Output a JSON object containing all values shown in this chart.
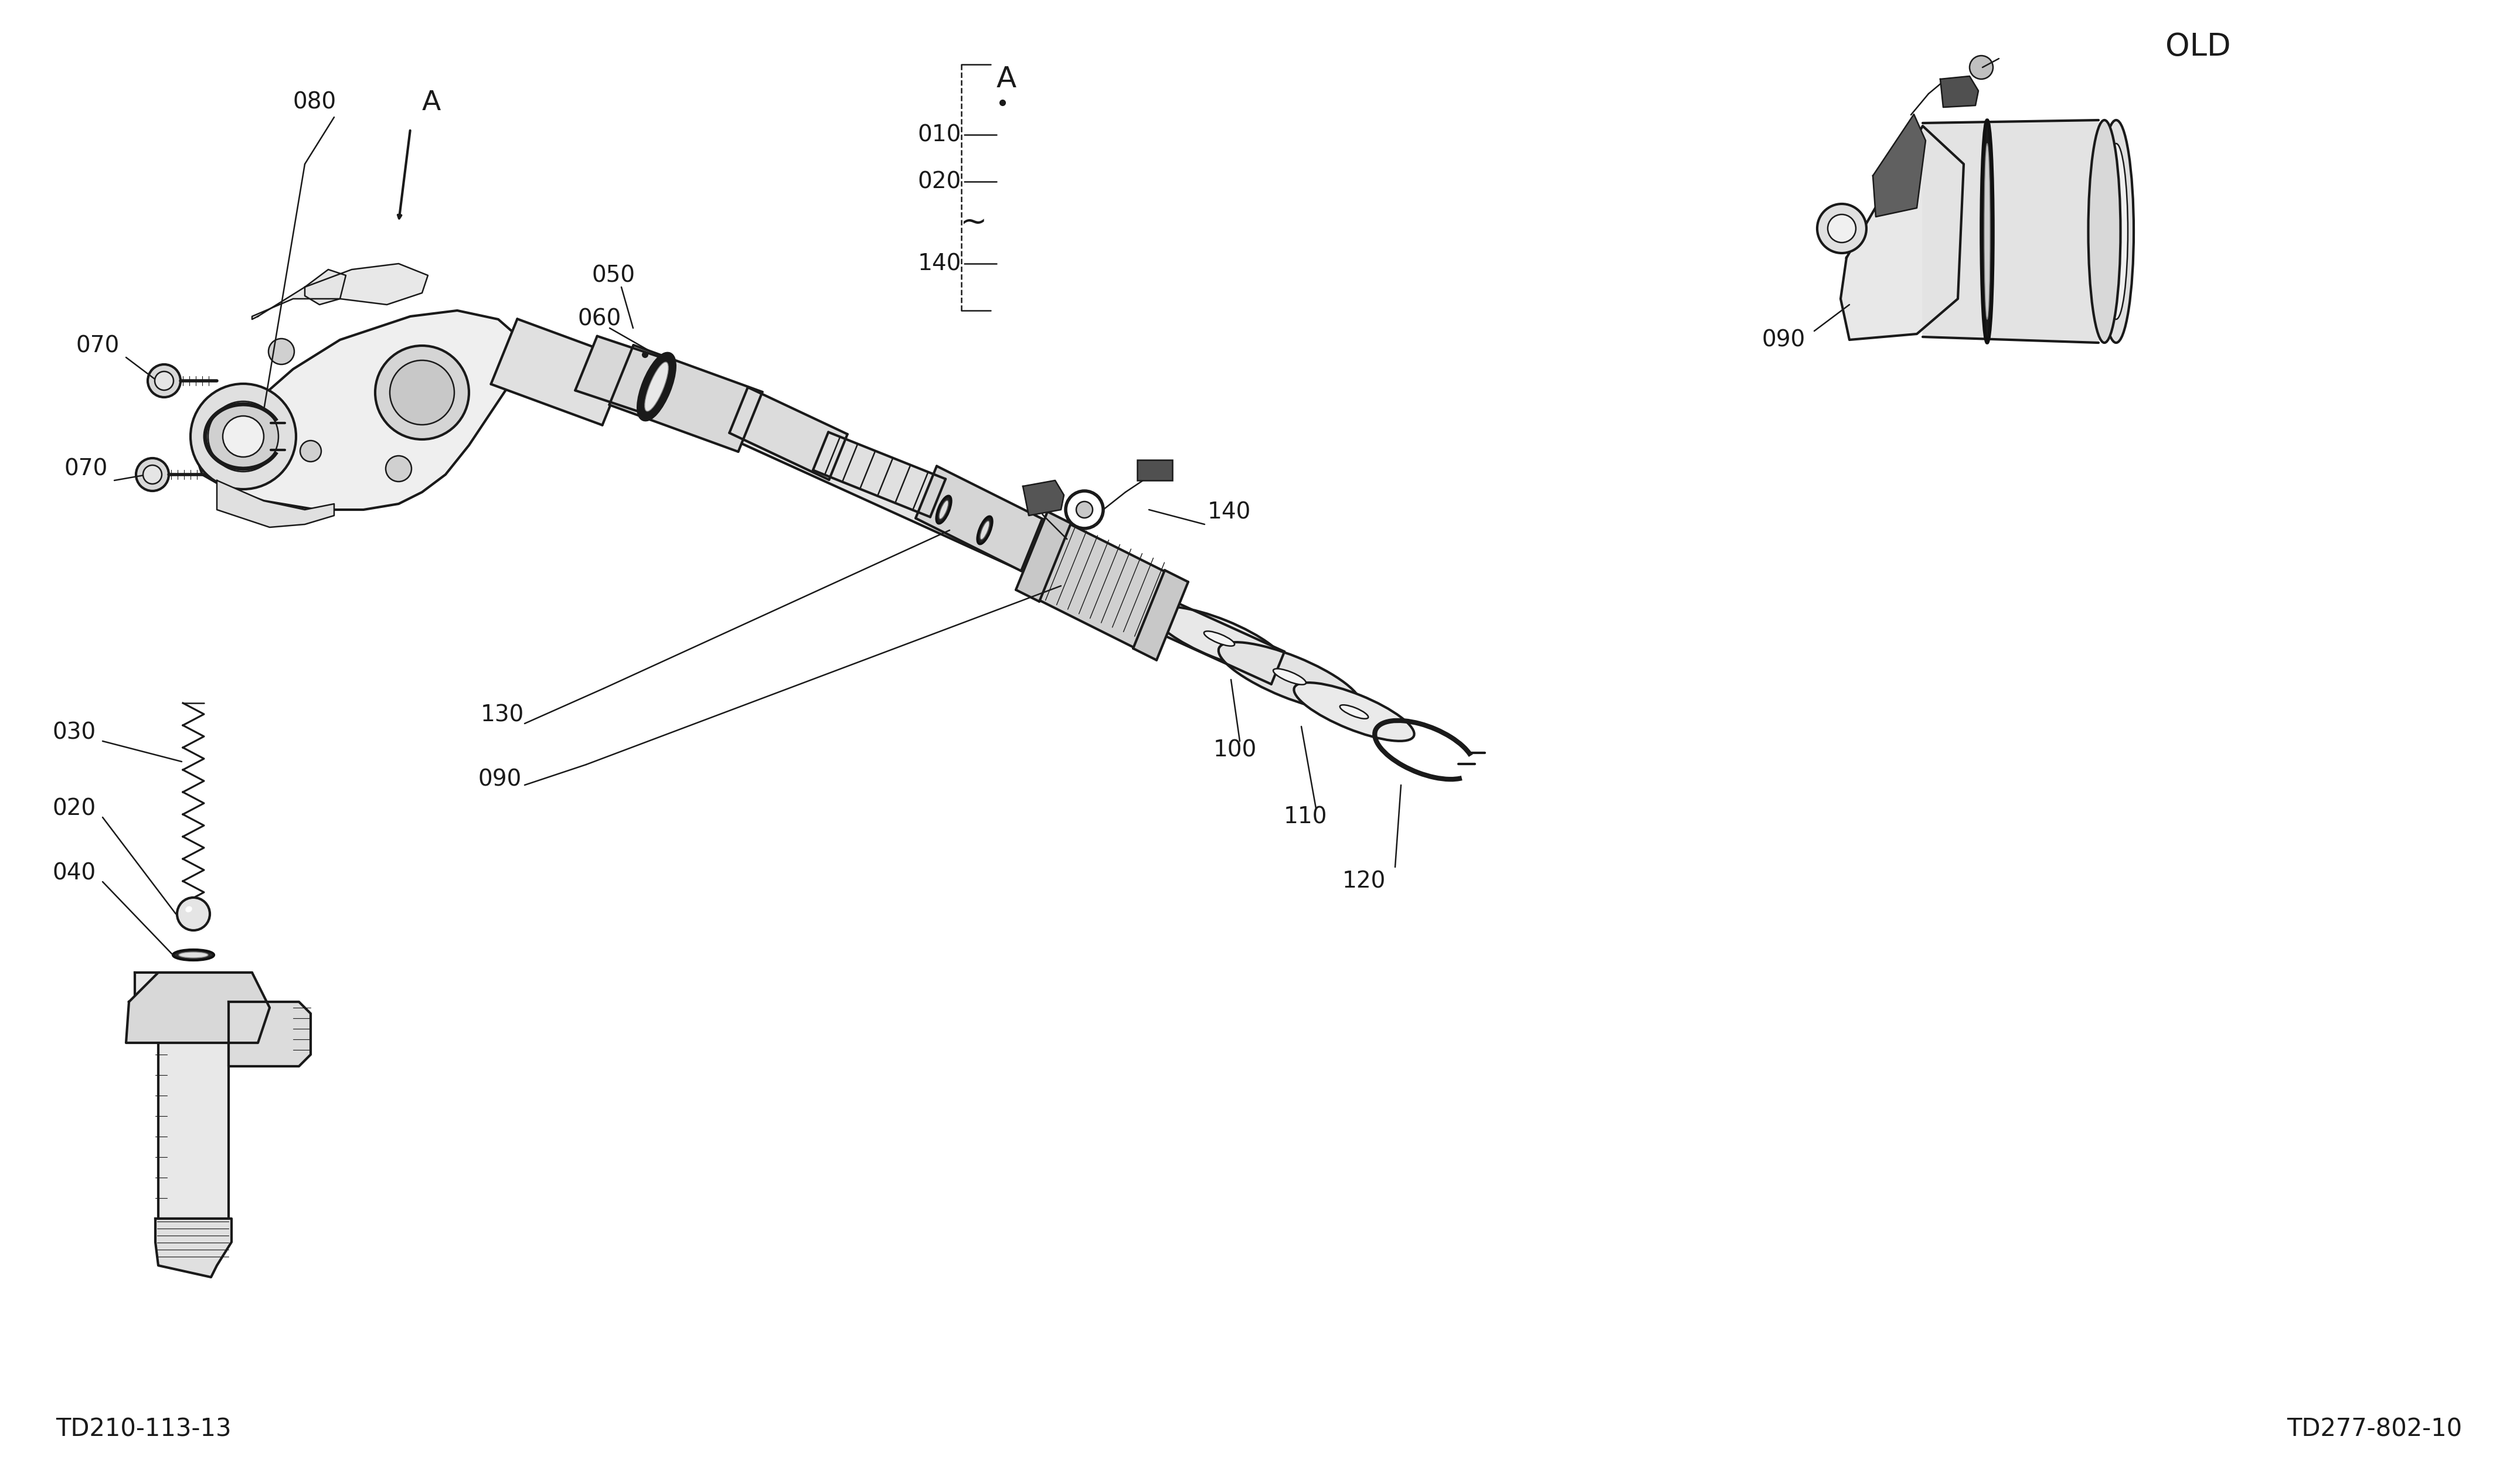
{
  "bg_color": "#ffffff",
  "line_color": "#1a1a1a",
  "text_color": "#1a1a1a",
  "fig_width": 42.99,
  "fig_height": 25.04,
  "bottom_left_label": "TD210-113-13",
  "bottom_right_label": "TD277-802-10",
  "old_label": "OLD",
  "section_label": "A",
  "lw_main": 3.0,
  "lw_thin": 1.8,
  "lw_thick": 5.0,
  "label_fontsize": 32,
  "label_fontsize_small": 28
}
